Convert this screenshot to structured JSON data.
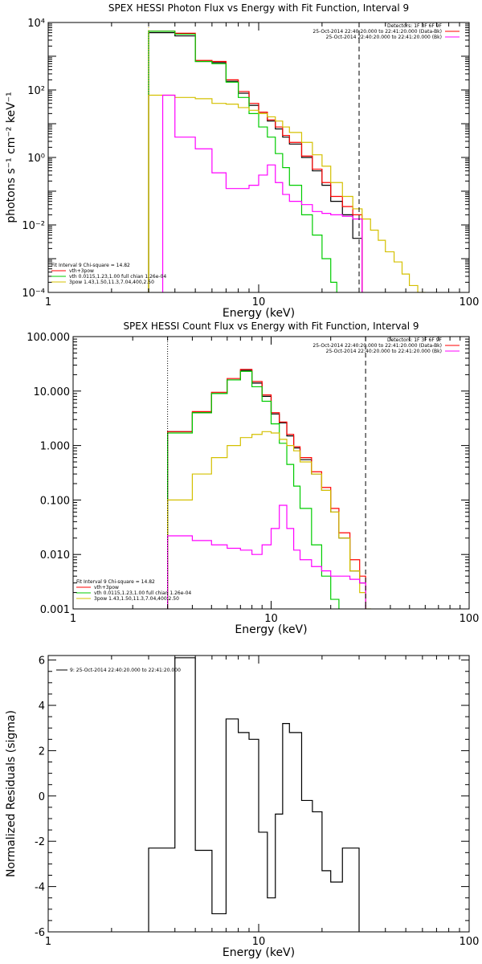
{
  "chart_data": [
    {
      "type": "line",
      "title": "SPEX HESSI Photon Flux vs Energy with Fit Function, Interval 9",
      "xlabel": "Energy (keV)",
      "ylabel": "photons s⁻¹ cm⁻² keV⁻¹",
      "xscale": "log",
      "yscale": "log",
      "xlim": [
        1,
        100
      ],
      "ylim": [
        0.0001,
        10000
      ],
      "x_ticks": [
        "1",
        "10",
        "100"
      ],
      "y_ticks": [
        "10⁻⁴",
        "10⁻²",
        "10⁰",
        "10²",
        "10⁴"
      ],
      "vlines": [
        {
          "x": 3.0,
          "style": "dotted",
          "color": "#d4c000"
        },
        {
          "x": 30.0,
          "style": "dashed",
          "color": "#000000"
        }
      ],
      "legend_header": [
        "Detectors: 1F 3F 6F 9F",
        "25-Oct-2014 22:40:20.000 to 22:41:20.000 (Data-Bk)",
        "25-Oct-2014 22:40:20.000 to 22:41:20.000 (Bk)"
      ],
      "legend_header_colors": [
        "#000000",
        "#ff0000",
        "#ff00ff"
      ],
      "fit_legend": [
        "Fit Interval 9   Chi-square = 14.82",
        "vth+3pow",
        "vth 0.0115,1.23,1.00   full chian 1.26e-04",
        "3pow 1.43,1.50,11.3,7.04,400,2.50"
      ],
      "fit_legend_colors": [
        "#000000",
        "#ff0000",
        "#00cc00",
        "#d4c000"
      ],
      "series": [
        {
          "name": "Data-Bk",
          "color": "#000000",
          "edges": [
            3.0,
            4.0,
            5.0,
            6.0,
            7.0,
            8.0,
            9.0,
            10.0,
            11.0,
            12.0,
            13.0,
            14.0,
            16.0,
            18.0,
            20.0,
            22.0,
            25.0,
            28.0,
            31.0
          ],
          "values": [
            5000,
            4000,
            700,
            650,
            180,
            80,
            35,
            20,
            12,
            7,
            4,
            2.5,
            1,
            0.4,
            0.15,
            0.05,
            0.02,
            0.004
          ]
        },
        {
          "name": "vth+3pow",
          "color": "#ff0000",
          "edges": [
            3.0,
            4.0,
            5.0,
            6.0,
            7.0,
            8.0,
            9.0,
            10.0,
            11.0,
            12.0,
            13.0,
            14.0,
            16.0,
            18.0,
            20.0,
            22.0,
            25.0,
            28.0,
            31.0
          ],
          "values": [
            5500,
            4800,
            750,
            700,
            200,
            90,
            40,
            22,
            13,
            8,
            4.5,
            2.8,
            1.1,
            0.45,
            0.18,
            0.07,
            0.035,
            0.02
          ]
        },
        {
          "name": "vth",
          "color": "#00cc00",
          "edges": [
            3.0,
            4.0,
            5.0,
            6.0,
            7.0,
            8.0,
            9.0,
            10.0,
            11.0,
            12.0,
            13.0,
            14.0,
            16.0,
            18.0,
            20.0,
            22.0,
            23.5
          ],
          "values": [
            5500,
            4500,
            700,
            600,
            170,
            60,
            20,
            8,
            4,
            1.3,
            0.5,
            0.15,
            0.02,
            0.005,
            0.001,
            0.0002
          ]
        },
        {
          "name": "3pow",
          "color": "#d4c000",
          "edges": [
            3.0,
            4.0,
            5.0,
            6.0,
            7.0,
            8.0,
            9.0,
            10.0,
            11.0,
            12.0,
            13.0,
            14.0,
            16.0,
            18.0,
            20.0,
            22.0,
            25.0,
            28.0,
            31.0,
            34.0,
            37.0,
            40.0,
            44.0,
            48.0,
            52.0,
            57.0,
            62.0
          ],
          "values": [
            70,
            60,
            55,
            40,
            38,
            30,
            25,
            20,
            16,
            12,
            8,
            5.5,
            2.8,
            1.2,
            0.55,
            0.18,
            0.07,
            0.03,
            0.015,
            0.007,
            0.0035,
            0.0016,
            0.0008,
            0.00035,
            0.00016,
            0.0001
          ]
        },
        {
          "name": "Bk",
          "color": "#ff00ff",
          "edges": [
            3.5,
            4.0,
            5.0,
            6.0,
            7.0,
            8.0,
            9.0,
            10.0,
            11.0,
            12.0,
            13.0,
            14.0,
            16.0,
            18.0,
            20.0,
            22.0,
            25.0,
            28.0,
            31.0
          ],
          "values": [
            70,
            4,
            1.8,
            0.35,
            0.12,
            0.12,
            0.15,
            0.3,
            0.6,
            0.18,
            0.08,
            0.05,
            0.04,
            0.025,
            0.022,
            0.02,
            0.018,
            0.015
          ]
        }
      ]
    },
    {
      "type": "line",
      "title": "SPEX HESSI Count Flux vs Energy with Fit Function, Interval 9",
      "xlabel": "Energy (keV)",
      "ylabel": "",
      "xscale": "log",
      "yscale": "log",
      "xlim": [
        1,
        100
      ],
      "ylim": [
        0.001,
        100
      ],
      "x_ticks": [
        "1",
        "10",
        "100"
      ],
      "y_ticks": [
        "0.001",
        "0.010",
        "0.100",
        "1.000",
        "10.000",
        "100.000"
      ],
      "vlines": [
        {
          "x": 3.0,
          "style": "dotted",
          "color": "#000000"
        },
        {
          "x": 30.0,
          "style": "dashed",
          "color": "#000000"
        }
      ],
      "legend_header": [
        "Detectors: 1F 3F 6F 9F",
        "25-Oct-2014 22:40:20.000 to 22:41:20.000 (Data-Bk)",
        "25-Oct-2014 22:40:20.000 to 22:41:20.000 (Bk)"
      ],
      "legend_header_colors": [
        "#000000",
        "#ff0000",
        "#ff00ff"
      ],
      "fit_legend": [
        "Fit Interval 9   Chi-square = 14.82",
        "vth+3pow",
        "vth 0.0115,1.23,1.00   full chian 1.26e-04",
        "3pow 1.43,1.50,11.3,7.04,400,2.50"
      ],
      "fit_legend_colors": [
        "#000000",
        "#ff0000",
        "#00cc00",
        "#d4c000"
      ],
      "series": [
        {
          "name": "Data-Bk",
          "color": "#000000",
          "edges": [
            3.0,
            4.0,
            5.0,
            6.0,
            7.0,
            8.0,
            9.0,
            10.0,
            11.0,
            12.0,
            13.0,
            14.0,
            16.0,
            18.0,
            20.0,
            22.0,
            25.0,
            28.0,
            30.0
          ],
          "values": [
            1.8,
            4.0,
            9.0,
            16,
            24,
            14,
            8,
            3.8,
            2.6,
            1.5,
            0.9,
            0.55,
            0.3,
            0.15,
            0.06,
            0.02,
            0.005,
            0.003
          ]
        },
        {
          "name": "vth+3pow",
          "color": "#ff0000",
          "edges": [
            3.0,
            4.0,
            5.0,
            6.0,
            7.0,
            8.0,
            9.0,
            10.0,
            11.0,
            12.0,
            13.0,
            14.0,
            16.0,
            18.0,
            20.0,
            22.0,
            25.0,
            28.0,
            30.0
          ],
          "values": [
            1.8,
            4.2,
            9.5,
            17,
            25,
            15,
            8.5,
            4,
            2.7,
            1.6,
            0.95,
            0.6,
            0.33,
            0.17,
            0.07,
            0.025,
            0.008,
            0.004
          ]
        },
        {
          "name": "vth",
          "color": "#00cc00",
          "edges": [
            3.0,
            4.0,
            5.0,
            6.0,
            7.0,
            8.0,
            9.0,
            10.0,
            11.0,
            12.0,
            13.0,
            14.0,
            16.0,
            18.0,
            20.0,
            22.0
          ],
          "values": [
            1.7,
            4.0,
            9.0,
            16,
            23,
            12,
            6.5,
            2.5,
            1.1,
            0.45,
            0.18,
            0.07,
            0.015,
            0.004,
            0.0015
          ]
        },
        {
          "name": "3pow",
          "color": "#d4c000",
          "edges": [
            3.0,
            4.0,
            5.0,
            6.0,
            7.0,
            8.0,
            9.0,
            10.0,
            11.0,
            12.0,
            13.0,
            14.0,
            16.0,
            18.0,
            20.0,
            22.0,
            25.0,
            28.0,
            30.0,
            32.0
          ],
          "values": [
            0.1,
            0.3,
            0.6,
            1.0,
            1.4,
            1.6,
            1.8,
            1.7,
            1.3,
            1.0,
            0.8,
            0.5,
            0.3,
            0.15,
            0.06,
            0.02,
            0.005,
            0.002,
            0.001
          ]
        },
        {
          "name": "Bk",
          "color": "#ff00ff",
          "edges": [
            3.0,
            4.0,
            5.0,
            6.0,
            7.0,
            8.0,
            9.0,
            10.0,
            11.0,
            12.0,
            13.0,
            14.0,
            16.0,
            18.0,
            20.0,
            22.0,
            25.0,
            28.0,
            30.0
          ],
          "values": [
            0.022,
            0.018,
            0.015,
            0.013,
            0.012,
            0.01,
            0.015,
            0.03,
            0.08,
            0.03,
            0.012,
            0.008,
            0.006,
            0.005,
            0.004,
            0.004,
            0.0035,
            0.003
          ]
        }
      ]
    },
    {
      "type": "line",
      "title": "",
      "xlabel": "Energy (keV)",
      "ylabel": "Normalized Residuals (sigma)",
      "xscale": "log",
      "yscale": "linear",
      "xlim": [
        1,
        100
      ],
      "ylim": [
        -6,
        6.2
      ],
      "x_ticks": [
        "1",
        "10",
        "100"
      ],
      "y_ticks": [
        "-6",
        "-4",
        "-2",
        "0",
        "2",
        "4",
        "6"
      ],
      "legend": [
        "9: 25-Oct-2014 22:40:20.000 to 22:41:20.000"
      ],
      "series": [
        {
          "name": "9: 25-Oct-2014 22:40:20.000 to 22:41:20.000",
          "color": "#000000",
          "edges": [
            3.0,
            4.0,
            5.0,
            6.0,
            7.0,
            8.0,
            9.0,
            10.0,
            11.0,
            12.0,
            13.0,
            14.0,
            16.0,
            18.0,
            20.0,
            22.0,
            25.0,
            28.0,
            30.0
          ],
          "values": [
            -2.3,
            6.1,
            -2.4,
            -5.2,
            3.4,
            2.8,
            2.5,
            -1.6,
            -4.5,
            -0.8,
            3.2,
            2.8,
            -0.2,
            -0.7,
            -3.3,
            -3.8,
            -2.3,
            -2.3
          ],
          "start": -6,
          "end": -6
        }
      ]
    }
  ]
}
